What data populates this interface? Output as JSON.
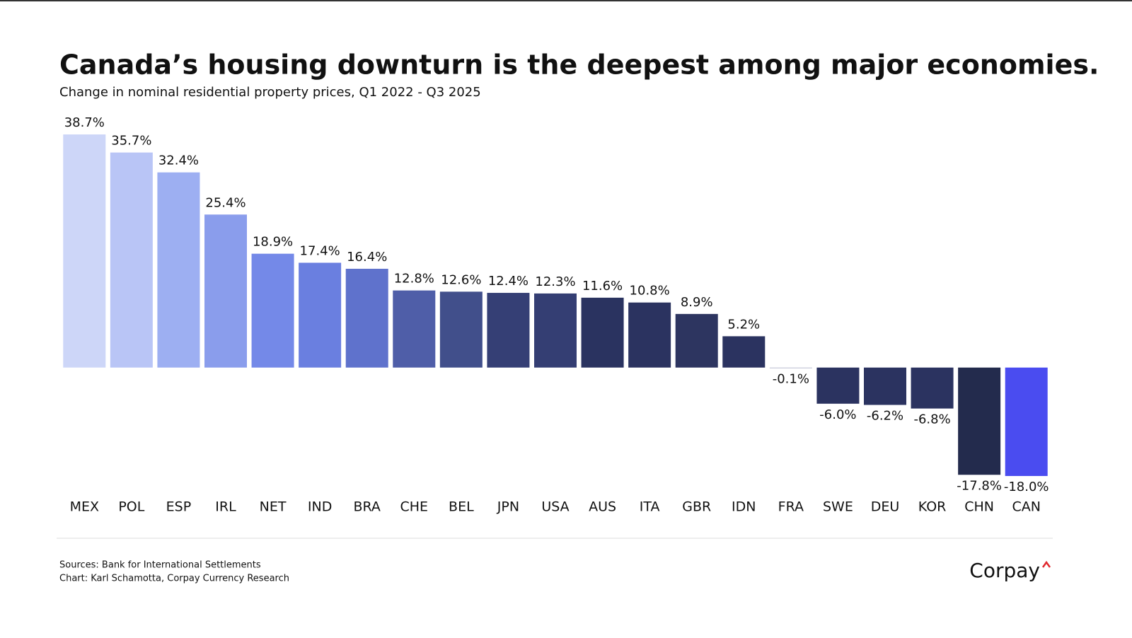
{
  "chart_data": {
    "type": "bar",
    "title": "Canada’s housing downturn is the deepest among major economies.",
    "subtitle": "Change in nominal residential property prices, Q1 2022 - Q3 2025",
    "categories": [
      "MEX",
      "POL",
      "ESP",
      "IRL",
      "NET",
      "IND",
      "BRA",
      "CHE",
      "BEL",
      "JPN",
      "USA",
      "AUS",
      "ITA",
      "GBR",
      "IDN",
      "FRA",
      "SWE",
      "DEU",
      "KOR",
      "CHN",
      "CAN"
    ],
    "values": [
      38.7,
      35.7,
      32.4,
      25.4,
      18.9,
      17.4,
      16.4,
      12.8,
      12.6,
      12.4,
      12.3,
      11.6,
      10.8,
      8.9,
      5.2,
      -0.1,
      -6.0,
      -6.2,
      -6.8,
      -17.8,
      -18.0
    ],
    "value_labels": [
      "38.7%",
      "35.7%",
      "32.4%",
      "25.4%",
      "18.9%",
      "17.4%",
      "16.4%",
      "12.8%",
      "12.6%",
      "12.4%",
      "12.3%",
      "11.6%",
      "10.8%",
      "8.9%",
      "5.2%",
      "-0.1%",
      "-6.0%",
      "-6.2%",
      "-6.8%",
      "-17.8%",
      "-18.0%"
    ],
    "colors": [
      "#cdd6f8",
      "#b9c5f6",
      "#9daff2",
      "#8a9dec",
      "#7489e8",
      "#6a7fe0",
      "#5f72cc",
      "#4f5ea8",
      "#414f8b",
      "#353f75",
      "#343e73",
      "#2a3360",
      "#2b3360",
      "#2d3560",
      "#2b3360",
      "#b8bcd0",
      "#2b3360",
      "#2b3360",
      "#2b3360",
      "#232b4d",
      "#4a4cf0"
    ],
    "ylim": [
      -20,
      40
    ],
    "source": "Sources: Bank for International Settlements",
    "credit": "Chart: Karl Schamotta, Corpay Currency Research",
    "brand": "Corpay"
  }
}
